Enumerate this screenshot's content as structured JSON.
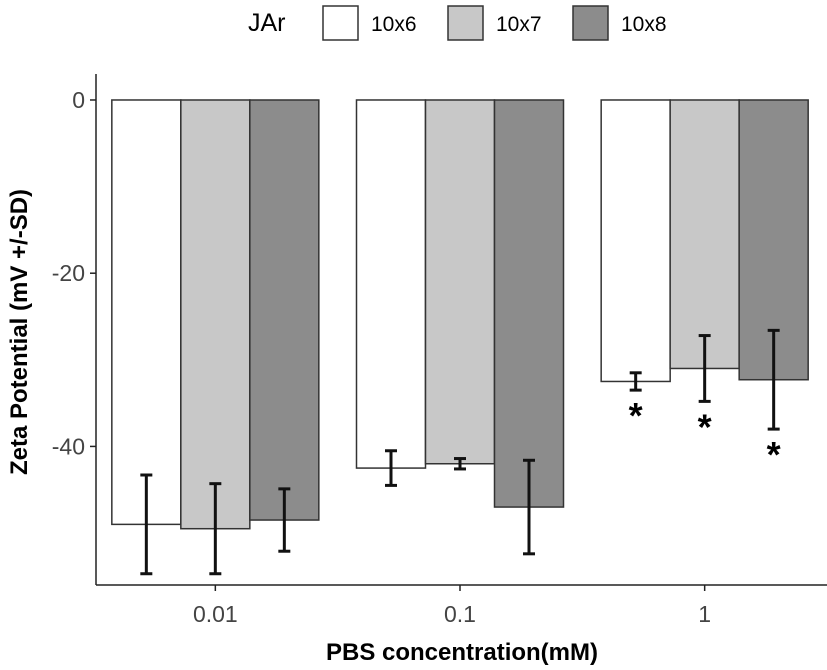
{
  "chart_data": {
    "type": "bar",
    "xlabel": "PBS concentration(mM)",
    "ylabel": "Zeta Potential (mV +/-SD)",
    "categories": [
      "0.01",
      "0.1",
      "1"
    ],
    "ylim": [
      -56,
      3
    ],
    "yticks": [
      0,
      -20,
      -40
    ],
    "ytick_labels": [
      "0",
      "-20",
      "-40"
    ],
    "legend": {
      "title": "JAr",
      "position": "top"
    },
    "series": [
      {
        "name": "10x6",
        "color": "#ffffff",
        "values": [
          -49.0,
          -42.5,
          -32.5
        ],
        "sd": [
          5.7,
          2.0,
          1.0
        ],
        "significance": [
          "",
          "",
          "*"
        ]
      },
      {
        "name": "10x7",
        "color": "#c8c8c8",
        "values": [
          -49.5,
          -42.0,
          -31.0
        ],
        "sd": [
          5.2,
          0.6,
          3.8
        ],
        "significance": [
          "",
          "",
          "*"
        ]
      },
      {
        "name": "10x8",
        "color": "#8c8c8c",
        "values": [
          -48.5,
          -47.0,
          -32.3
        ],
        "sd": [
          3.6,
          5.4,
          5.7
        ],
        "significance": [
          "",
          "",
          "*"
        ]
      }
    ]
  }
}
